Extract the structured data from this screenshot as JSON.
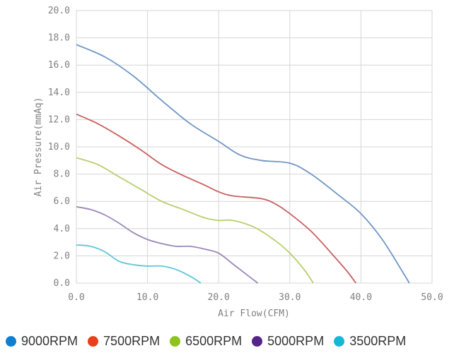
{
  "chart_data": {
    "type": "line",
    "title": "",
    "xlabel": "Air Flow(CFM)",
    "ylabel": "Air Pressure(mmAq)",
    "xlim": [
      0,
      50
    ],
    "ylim": [
      0,
      20
    ],
    "x_ticks": [
      "0.0",
      "10.0",
      "20.0",
      "30.0",
      "40.0",
      "50.0"
    ],
    "y_ticks": [
      "0.0",
      "2.0",
      "4.0",
      "6.0",
      "8.0",
      "10.0",
      "12.0",
      "14.0",
      "16.0",
      "18.0",
      "20.0"
    ],
    "grid": true,
    "legend_position": "bottom",
    "series": [
      {
        "name": "9000RPM",
        "line_color": "#6f96c6",
        "marker_color": "#0f7fd2",
        "points": [
          [
            0,
            17.5
          ],
          [
            4,
            16.6
          ],
          [
            8,
            15.2
          ],
          [
            12,
            13.4
          ],
          [
            16,
            11.7
          ],
          [
            20,
            10.4
          ],
          [
            23,
            9.4
          ],
          [
            26,
            9.0
          ],
          [
            30,
            8.8
          ],
          [
            33,
            8.0
          ],
          [
            37,
            6.4
          ],
          [
            40,
            5.1
          ],
          [
            43,
            3.2
          ],
          [
            46,
            0.7
          ],
          [
            46.8,
            0
          ]
        ]
      },
      {
        "name": "7500RPM",
        "line_color": "#c96060",
        "marker_color": "#e8401c",
        "points": [
          [
            0,
            12.4
          ],
          [
            3,
            11.7
          ],
          [
            6,
            10.8
          ],
          [
            9,
            9.8
          ],
          [
            12,
            8.7
          ],
          [
            15,
            7.9
          ],
          [
            18,
            7.2
          ],
          [
            20,
            6.7
          ],
          [
            22,
            6.4
          ],
          [
            26,
            6.2
          ],
          [
            28,
            5.8
          ],
          [
            30,
            5.1
          ],
          [
            33,
            3.8
          ],
          [
            36,
            2.1
          ],
          [
            38,
            0.9
          ],
          [
            39.3,
            0
          ]
        ]
      },
      {
        "name": "6500RPM",
        "line_color": "#b6cf6e",
        "marker_color": "#8dc31e",
        "points": [
          [
            0,
            9.2
          ],
          [
            3,
            8.7
          ],
          [
            6,
            7.8
          ],
          [
            9,
            6.9
          ],
          [
            12,
            6.0
          ],
          [
            15,
            5.4
          ],
          [
            18,
            4.8
          ],
          [
            20,
            4.6
          ],
          [
            22,
            4.6
          ],
          [
            25,
            4.1
          ],
          [
            28,
            3.1
          ],
          [
            30,
            2.2
          ],
          [
            32,
            1.0
          ],
          [
            33.3,
            0
          ]
        ]
      },
      {
        "name": "5000RPM",
        "line_color": "#9988b7",
        "marker_color": "#56238a",
        "points": [
          [
            0,
            5.6
          ],
          [
            2,
            5.4
          ],
          [
            4,
            5.0
          ],
          [
            6,
            4.4
          ],
          [
            8,
            3.7
          ],
          [
            10,
            3.2
          ],
          [
            12,
            2.9
          ],
          [
            14,
            2.7
          ],
          [
            16,
            2.7
          ],
          [
            18,
            2.5
          ],
          [
            20,
            2.2
          ],
          [
            22,
            1.4
          ],
          [
            24,
            0.6
          ],
          [
            25.5,
            0
          ]
        ]
      },
      {
        "name": "3500RPM",
        "line_color": "#5fc6db",
        "marker_color": "#14b8d6",
        "points": [
          [
            0,
            2.8
          ],
          [
            2,
            2.7
          ],
          [
            4,
            2.3
          ],
          [
            6,
            1.6
          ],
          [
            8,
            1.35
          ],
          [
            10,
            1.25
          ],
          [
            12,
            1.25
          ],
          [
            14,
            1.0
          ],
          [
            16,
            0.5
          ],
          [
            17.5,
            0
          ]
        ]
      }
    ]
  }
}
